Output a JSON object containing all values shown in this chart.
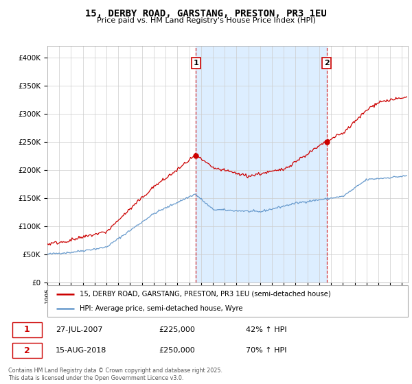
{
  "title": "15, DERBY ROAD, GARSTANG, PRESTON, PR3 1EU",
  "subtitle": "Price paid vs. HM Land Registry's House Price Index (HPI)",
  "ylim": [
    0,
    420000
  ],
  "xlim_start": 1995.0,
  "xlim_end": 2025.5,
  "red_color": "#cc0000",
  "blue_color": "#6699cc",
  "shade_color": "#ddeeff",
  "marker1_date": 2007.57,
  "marker1_price": 225000,
  "marker2_date": 2018.62,
  "marker2_price": 250000,
  "marker1_text": "27-JUL-2007",
  "marker1_pct": "42% ↑ HPI",
  "marker2_text": "15-AUG-2018",
  "marker2_pct": "70% ↑ HPI",
  "legend_label_red": "15, DERBY ROAD, GARSTANG, PRESTON, PR3 1EU (semi-detached house)",
  "legend_label_blue": "HPI: Average price, semi-detached house, Wyre",
  "footer": "Contains HM Land Registry data © Crown copyright and database right 2025.\nThis data is licensed under the Open Government Licence v3.0.",
  "grid_color": "#cccccc",
  "seed": 42
}
